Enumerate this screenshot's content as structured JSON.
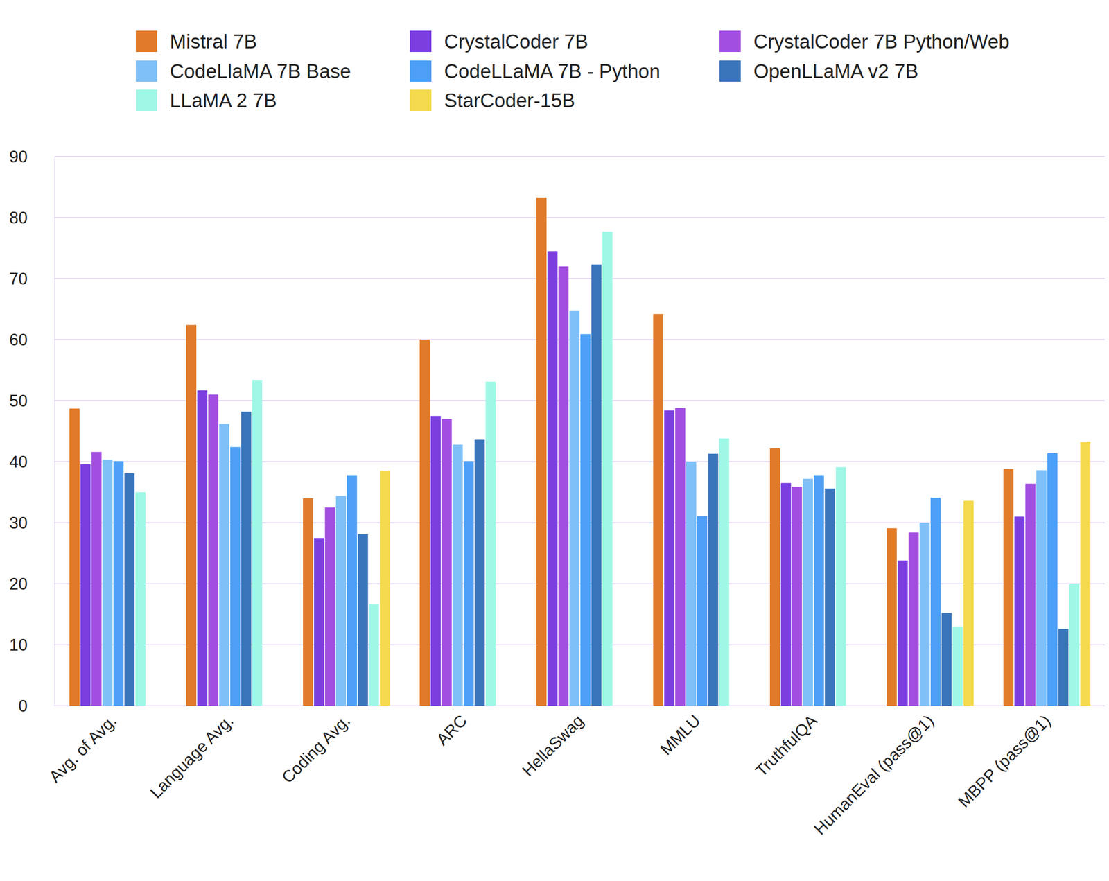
{
  "chart_data": {
    "type": "bar",
    "categories": [
      "Avg. of Avg.",
      "Language Avg.",
      "Coding Avg.",
      "ARC",
      "HellaSwag",
      "MMLU",
      "TruthfulQA",
      "HumanEval (pass@1)",
      "MBPP (pass@1)"
    ],
    "series": [
      {
        "name": "Mistral 7B",
        "color": "#e07b2a",
        "values": [
          48.7,
          62.4,
          34.0,
          60.0,
          83.3,
          64.2,
          42.2,
          29.1,
          38.8
        ]
      },
      {
        "name": "CrystalCoder 7B",
        "color": "#7b3fe0",
        "values": [
          39.6,
          51.7,
          27.5,
          47.5,
          74.5,
          48.4,
          36.5,
          23.8,
          31.0
        ]
      },
      {
        "name": "CrystalCoder 7B Python/Web",
        "color": "#a24ee0",
        "values": [
          41.6,
          51.0,
          32.5,
          47.0,
          72.0,
          48.8,
          35.9,
          28.4,
          36.4
        ]
      },
      {
        "name": "CodeLlaMA 7B Base",
        "color": "#7ec0f7",
        "values": [
          40.3,
          46.2,
          34.4,
          42.8,
          64.8,
          40.0,
          37.2,
          30.0,
          38.6
        ]
      },
      {
        "name": "CodeLLaMA 7B - Python",
        "color": "#4da0f5",
        "values": [
          40.1,
          42.4,
          37.8,
          40.1,
          60.9,
          31.1,
          37.8,
          34.1,
          41.4
        ]
      },
      {
        "name": "OpenLLaMA v2 7B",
        "color": "#3a75bb",
        "values": [
          38.1,
          48.2,
          28.1,
          43.6,
          72.3,
          41.3,
          35.6,
          15.2,
          12.6
        ]
      },
      {
        "name": "LLaMA 2 7B",
        "color": "#9ff7e6",
        "values": [
          35.0,
          53.4,
          16.6,
          53.1,
          77.7,
          43.8,
          39.1,
          13.0,
          20.0
        ]
      },
      {
        "name": "StarCoder-15B",
        "color": "#f5d94e",
        "values": [
          null,
          null,
          38.5,
          null,
          null,
          null,
          null,
          33.6,
          43.3
        ]
      }
    ],
    "ylim": [
      0,
      90
    ],
    "yticks": [
      0,
      10,
      20,
      30,
      40,
      50,
      60,
      70,
      80,
      90
    ],
    "grid": true,
    "legend": "top"
  }
}
